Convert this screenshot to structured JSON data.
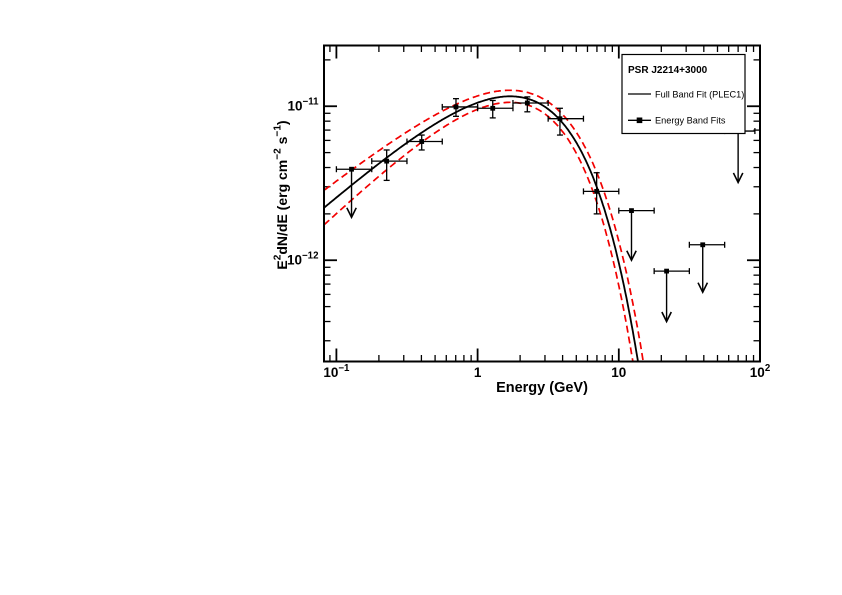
{
  "figure": {
    "background": "#ffffff"
  },
  "chart_data": {
    "type": "scatter",
    "title": "",
    "xlabel": "Energy (GeV)",
    "ylabel": "E^{2}dN/dE (erg cm^{−2} s^{−1})",
    "xscale": "log",
    "yscale": "log",
    "xlim": [
      0.0817,
      100
    ],
    "ylim": [
      2.2e-13,
      2.48e-11
    ],
    "grid": false,
    "x_ticks": {
      "values": [
        0.1,
        1,
        10,
        100
      ],
      "labels": [
        "10^{−1}",
        "1",
        "10",
        "10^{2}"
      ]
    },
    "y_ticks": {
      "values": [
        1e-11,
        1e-12
      ],
      "labels": [
        "10^{−11}",
        "10^{−12}"
      ]
    },
    "colors": {
      "fit_line": "#000000",
      "uncertainty_band": "#f20000",
      "marker": "#000000"
    },
    "legend": {
      "position": "top-right",
      "title": "PSR J2214+3000",
      "entries": [
        {
          "label": "Full Band Fit (PLEC1)",
          "style": "line"
        },
        {
          "label": "Energy Band Fits",
          "style": "line-square"
        }
      ]
    },
    "points": [
      {
        "e": 0.227,
        "e_lo": 0.178,
        "e_hi": 0.316,
        "f": 4.4e-12,
        "f_lo": 3.3e-12,
        "f_hi": 5.2e-12
      },
      {
        "e": 0.402,
        "e_lo": 0.316,
        "e_hi": 0.562,
        "f": 5.9e-12,
        "f_lo": 5.2e-12,
        "f_hi": 6.5e-12
      },
      {
        "e": 0.703,
        "e_lo": 0.562,
        "e_hi": 1.0,
        "f": 9.9e-12,
        "f_lo": 8.6e-12,
        "f_hi": 1.12e-11
      },
      {
        "e": 1.28,
        "e_lo": 1.0,
        "e_hi": 1.78,
        "f": 9.7e-12,
        "f_lo": 8.4e-12,
        "f_hi": 1.09e-11
      },
      {
        "e": 2.25,
        "e_lo": 1.78,
        "e_hi": 3.16,
        "f": 1.05e-11,
        "f_lo": 9.2e-12,
        "f_hi": 1.15e-11
      },
      {
        "e": 3.83,
        "e_lo": 3.16,
        "e_hi": 5.62,
        "f": 8.3e-12,
        "f_lo": 6.5e-12,
        "f_hi": 9.7e-12
      },
      {
        "e": 6.97,
        "e_lo": 5.62,
        "e_hi": 10.0,
        "f": 2.8e-12,
        "f_lo": 2e-12,
        "f_hi": 3.7e-12
      }
    ],
    "upper_limits": [
      {
        "e": 0.128,
        "e_lo": 0.1,
        "e_hi": 0.178,
        "f": 3.9e-12,
        "arrow_tip": 1.9e-12
      },
      {
        "e": 12.3,
        "e_lo": 10.0,
        "e_hi": 17.8,
        "f": 2.1e-12,
        "arrow_tip": 1e-12
      },
      {
        "e": 21.8,
        "e_lo": 17.8,
        "e_hi": 31.6,
        "f": 8.5e-13,
        "arrow_tip": 4e-13
      },
      {
        "e": 39.3,
        "e_lo": 31.6,
        "e_hi": 56.2,
        "f": 1.26e-12,
        "arrow_tip": 6.2e-13
      },
      {
        "e": 70.0,
        "e_lo": 56.2,
        "e_hi": 92.0,
        "f": 6.9e-12,
        "arrow_tip": 3.2e-12
      }
    ],
    "model": {
      "form": "E^2 dN/dE = P * (E/Ep)^b * exp(-(E-Ep)/Ec)",
      "central": {
        "P": 1.16e-11,
        "Ep": 1.7,
        "b": 0.8,
        "Ec": 2.125
      },
      "band_upper": {
        "P": 1.27e-11,
        "Ep": 1.692,
        "b": 0.72,
        "Ec": 2.35
      },
      "band_lower": {
        "P": 1.06e-11,
        "Ep": 1.7,
        "b": 0.88,
        "Ec": 1.93
      }
    }
  }
}
